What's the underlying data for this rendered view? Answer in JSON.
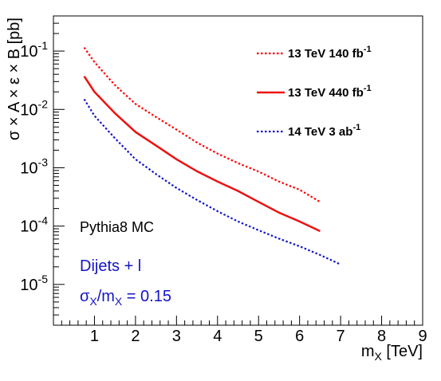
{
  "chart_data": {
    "type": "line",
    "x": [
      0.75,
      1.0,
      1.5,
      2.0,
      2.5,
      3.0,
      3.5,
      4.0,
      4.5,
      5.0,
      5.5,
      6.0,
      6.5,
      7.0
    ],
    "series": [
      {
        "name": "13 TeV 140 fb-1",
        "legend_label": "13 TeV 140 fb",
        "legend_sup": "-1",
        "color": "#ff0000",
        "style": "dotted",
        "values": [
          0.115,
          0.065,
          0.026,
          0.0124,
          0.0074,
          0.0045,
          0.0027,
          0.00175,
          0.0012,
          0.00086,
          0.00058,
          0.00042,
          0.00026,
          null
        ]
      },
      {
        "name": "13 TeV 440 fb-1",
        "legend_label": "13 TeV 440 fb",
        "legend_sup": "-1",
        "color": "#ee1111",
        "style": "solid",
        "values": [
          0.037,
          0.02,
          0.0086,
          0.0041,
          0.0024,
          0.0014,
          0.00087,
          0.00058,
          0.0004,
          0.00026,
          0.00017,
          0.00012,
          8.2e-05,
          null
        ]
      },
      {
        "name": "14 TeV 3 ab-1",
        "legend_label": "14 TeV 3 ab",
        "legend_sup": "-1",
        "color": "#1414c8",
        "style": "dotted",
        "values": [
          0.015,
          0.0078,
          0.0032,
          0.0014,
          0.00078,
          0.00045,
          0.00028,
          0.00018,
          0.00012,
          8.5e-05,
          6.1e-05,
          4.5e-05,
          3.2e-05,
          2.2e-05
        ]
      }
    ],
    "xlim": [
      0,
      9
    ],
    "ylim": [
      2e-06,
      0.4
    ],
    "ylog": true,
    "xticks": [
      "1",
      "2",
      "3",
      "4",
      "5",
      "6",
      "7",
      "8",
      "9"
    ],
    "yticks": [
      {
        "base": "10",
        "exp": "-1",
        "value": 0.1
      },
      {
        "base": "10",
        "exp": "-2",
        "value": 0.01
      },
      {
        "base": "10",
        "exp": "-3",
        "value": 0.001
      },
      {
        "base": "10",
        "exp": "-4",
        "value": 0.0001
      },
      {
        "base": "10",
        "exp": "-5",
        "value": 1e-05
      }
    ],
    "xlabel": {
      "main": "m",
      "sub": "X",
      "unit": " [TeV]"
    },
    "ylabel": "σ × A × ε × B [pb]",
    "annotations": {
      "generator": "Pythia8 MC",
      "channel": "Dijets + l",
      "resolution": {
        "s1": "σ",
        "sub1": "X",
        "mid": "/m",
        "sub2": "X",
        "rest": " = 0.15"
      }
    },
    "legend_position": "top-right",
    "grid": false
  }
}
